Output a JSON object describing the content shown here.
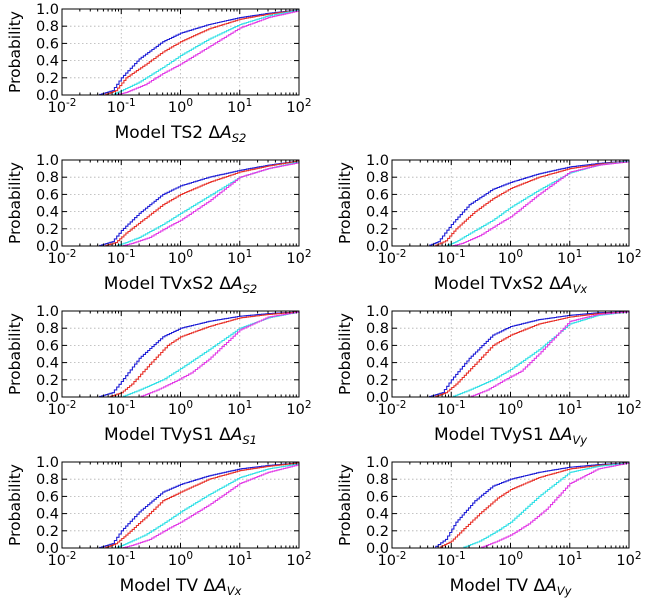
{
  "colors": {
    "blue": "#1f1fd6",
    "red": "#e8322a",
    "cyan": "#31e0e6",
    "magenta": "#e23ae6"
  },
  "chart_data": [
    {
      "type": "line",
      "ylabel": "Probability",
      "xlabel": {
        "model": "Model TS2",
        "delta": "Δ",
        "var": "A",
        "sub": "S2"
      },
      "xscale": "log",
      "xlim": [
        0.01,
        100
      ],
      "ylim": [
        0,
        1
      ],
      "grid": true,
      "xticks": [
        {
          "base": "10",
          "exp": "-2"
        },
        {
          "base": "10",
          "exp": "-1"
        },
        {
          "base": "10",
          "exp": "0"
        },
        {
          "base": "10",
          "exp": "1"
        },
        {
          "base": "10",
          "exp": "2"
        }
      ],
      "yticks": [
        "0.0",
        "0.2",
        "0.4",
        "0.6",
        "0.8",
        "1.0"
      ],
      "series": [
        {
          "color": "blue",
          "x": [
            0.04,
            0.07,
            0.1,
            0.2,
            0.5,
            1,
            3,
            10,
            30,
            100
          ],
          "y": [
            0,
            0.05,
            0.2,
            0.42,
            0.62,
            0.72,
            0.82,
            0.9,
            0.95,
            0.99
          ]
        },
        {
          "color": "red",
          "x": [
            0.05,
            0.08,
            0.12,
            0.25,
            0.5,
            1,
            3,
            10,
            30,
            100
          ],
          "y": [
            0,
            0.05,
            0.2,
            0.35,
            0.5,
            0.62,
            0.77,
            0.88,
            0.94,
            0.99
          ]
        },
        {
          "color": "cyan",
          "x": [
            0.07,
            0.1,
            0.2,
            0.5,
            1,
            3,
            10,
            30,
            100
          ],
          "y": [
            0,
            0.05,
            0.15,
            0.32,
            0.46,
            0.65,
            0.82,
            0.92,
            0.99
          ]
        },
        {
          "color": "magenta",
          "x": [
            0.08,
            0.12,
            0.25,
            0.5,
            1,
            3,
            10,
            30,
            100
          ],
          "y": [
            0,
            0.03,
            0.12,
            0.25,
            0.36,
            0.56,
            0.78,
            0.9,
            0.98
          ]
        }
      ]
    },
    {
      "type": "line",
      "ylabel": "Probability",
      "xlabel": {
        "model": "Model TVxS2",
        "delta": "Δ",
        "var": "A",
        "sub": "S2"
      },
      "xscale": "log",
      "xlim": [
        0.01,
        100
      ],
      "ylim": [
        0,
        1
      ],
      "grid": true,
      "xticks": [
        {
          "base": "10",
          "exp": "-2"
        },
        {
          "base": "10",
          "exp": "-1"
        },
        {
          "base": "10",
          "exp": "0"
        },
        {
          "base": "10",
          "exp": "1"
        },
        {
          "base": "10",
          "exp": "2"
        }
      ],
      "yticks": [
        "0.0",
        "0.2",
        "0.4",
        "0.6",
        "0.8",
        "1.0"
      ],
      "series": [
        {
          "color": "blue",
          "x": [
            0.04,
            0.07,
            0.1,
            0.2,
            0.5,
            1,
            3,
            10,
            30,
            100
          ],
          "y": [
            0,
            0.05,
            0.18,
            0.38,
            0.6,
            0.7,
            0.8,
            0.88,
            0.94,
            0.99
          ]
        },
        {
          "color": "red",
          "x": [
            0.05,
            0.08,
            0.12,
            0.25,
            0.5,
            1,
            3,
            10,
            30,
            100
          ],
          "y": [
            0,
            0.04,
            0.15,
            0.32,
            0.48,
            0.6,
            0.74,
            0.86,
            0.93,
            0.99
          ]
        },
        {
          "color": "cyan",
          "x": [
            0.08,
            0.12,
            0.2,
            0.5,
            1,
            3,
            10,
            30,
            100
          ],
          "y": [
            0,
            0.04,
            0.1,
            0.25,
            0.38,
            0.58,
            0.8,
            0.9,
            0.98
          ]
        },
        {
          "color": "magenta",
          "x": [
            0.1,
            0.15,
            0.3,
            0.6,
            1,
            3,
            10,
            30,
            100
          ],
          "y": [
            0,
            0.03,
            0.1,
            0.22,
            0.3,
            0.52,
            0.8,
            0.9,
            0.97
          ]
        }
      ]
    },
    {
      "type": "line",
      "ylabel": "Probability",
      "xlabel": {
        "model": "Model TVxS2",
        "delta": "Δ",
        "var": "A",
        "sub": "Vx"
      },
      "xscale": "log",
      "xlim": [
        0.01,
        100
      ],
      "ylim": [
        0,
        1
      ],
      "grid": true,
      "xticks": [
        {
          "base": "10",
          "exp": "-2"
        },
        {
          "base": "10",
          "exp": "-1"
        },
        {
          "base": "10",
          "exp": "0"
        },
        {
          "base": "10",
          "exp": "1"
        },
        {
          "base": "10",
          "exp": "2"
        }
      ],
      "yticks": [
        "0.0",
        "0.2",
        "0.4",
        "0.6",
        "0.8",
        "1.0"
      ],
      "series": [
        {
          "color": "blue",
          "x": [
            0.04,
            0.06,
            0.1,
            0.2,
            0.5,
            1,
            3,
            10,
            30,
            100
          ],
          "y": [
            0,
            0.05,
            0.25,
            0.48,
            0.66,
            0.74,
            0.84,
            0.92,
            0.96,
            0.99
          ]
        },
        {
          "color": "red",
          "x": [
            0.05,
            0.08,
            0.12,
            0.25,
            0.5,
            1,
            3,
            10,
            30,
            100
          ],
          "y": [
            0,
            0.06,
            0.2,
            0.4,
            0.55,
            0.67,
            0.8,
            0.9,
            0.95,
            0.99
          ]
        },
        {
          "color": "cyan",
          "x": [
            0.08,
            0.12,
            0.25,
            0.5,
            1,
            3,
            10,
            30,
            100
          ],
          "y": [
            0,
            0.05,
            0.18,
            0.3,
            0.45,
            0.65,
            0.85,
            0.94,
            0.99
          ]
        },
        {
          "color": "magenta",
          "x": [
            0.1,
            0.15,
            0.3,
            0.6,
            1,
            3,
            10,
            30,
            100
          ],
          "y": [
            0,
            0.03,
            0.12,
            0.25,
            0.34,
            0.6,
            0.86,
            0.94,
            0.98
          ]
        }
      ]
    },
    {
      "type": "line",
      "ylabel": "Probability",
      "xlabel": {
        "model": "Model TVyS1",
        "delta": "Δ",
        "var": "A",
        "sub": "S1"
      },
      "xscale": "log",
      "xlim": [
        0.01,
        100
      ],
      "ylim": [
        0,
        1
      ],
      "grid": true,
      "xticks": [
        {
          "base": "10",
          "exp": "-2"
        },
        {
          "base": "10",
          "exp": "-1"
        },
        {
          "base": "10",
          "exp": "0"
        },
        {
          "base": "10",
          "exp": "1"
        },
        {
          "base": "10",
          "exp": "2"
        }
      ],
      "yticks": [
        "0.0",
        "0.2",
        "0.4",
        "0.6",
        "0.8",
        "1.0"
      ],
      "series": [
        {
          "color": "blue",
          "x": [
            0.04,
            0.07,
            0.1,
            0.2,
            0.5,
            1,
            3,
            10,
            30,
            100
          ],
          "y": [
            0,
            0.05,
            0.18,
            0.45,
            0.7,
            0.8,
            0.88,
            0.94,
            0.97,
            0.99
          ]
        },
        {
          "color": "red",
          "x": [
            0.06,
            0.1,
            0.15,
            0.3,
            0.6,
            1,
            3,
            10,
            30,
            100
          ],
          "y": [
            0,
            0.05,
            0.15,
            0.38,
            0.6,
            0.7,
            0.82,
            0.92,
            0.96,
            0.99
          ]
        },
        {
          "color": "cyan",
          "x": [
            0.1,
            0.2,
            0.5,
            1,
            3,
            10,
            30,
            100
          ],
          "y": [
            0,
            0.08,
            0.2,
            0.33,
            0.55,
            0.8,
            0.92,
            0.99
          ]
        },
        {
          "color": "magenta",
          "x": [
            0.2,
            0.4,
            0.8,
            1.5,
            3,
            10,
            30,
            100
          ],
          "y": [
            0,
            0.08,
            0.18,
            0.28,
            0.44,
            0.78,
            0.93,
            0.99
          ]
        }
      ]
    },
    {
      "type": "line",
      "ylabel": "Probability",
      "xlabel": {
        "model": "Model TVyS1",
        "delta": "Δ",
        "var": "A",
        "sub": "Vy"
      },
      "xscale": "log",
      "xlim": [
        0.01,
        100
      ],
      "ylim": [
        0,
        1
      ],
      "grid": true,
      "xticks": [
        {
          "base": "10",
          "exp": "-2"
        },
        {
          "base": "10",
          "exp": "-1"
        },
        {
          "base": "10",
          "exp": "0"
        },
        {
          "base": "10",
          "exp": "1"
        },
        {
          "base": "10",
          "exp": "2"
        }
      ],
      "yticks": [
        "0.0",
        "0.2",
        "0.4",
        "0.6",
        "0.8",
        "1.0"
      ],
      "series": [
        {
          "color": "blue",
          "x": [
            0.04,
            0.07,
            0.1,
            0.2,
            0.5,
            1,
            3,
            10,
            30,
            100
          ],
          "y": [
            0,
            0.05,
            0.2,
            0.45,
            0.72,
            0.82,
            0.9,
            0.95,
            0.98,
            0.99
          ]
        },
        {
          "color": "red",
          "x": [
            0.05,
            0.08,
            0.12,
            0.25,
            0.5,
            1,
            3,
            10,
            30,
            100
          ],
          "y": [
            0,
            0.05,
            0.15,
            0.38,
            0.6,
            0.72,
            0.85,
            0.93,
            0.97,
            0.99
          ]
        },
        {
          "color": "cyan",
          "x": [
            0.1,
            0.2,
            0.5,
            1,
            3,
            10,
            30,
            100
          ],
          "y": [
            0,
            0.08,
            0.2,
            0.32,
            0.55,
            0.85,
            0.95,
            0.99
          ]
        },
        {
          "color": "magenta",
          "x": [
            0.2,
            0.4,
            0.8,
            1.5,
            3,
            10,
            30,
            100
          ],
          "y": [
            0,
            0.08,
            0.2,
            0.3,
            0.5,
            0.88,
            0.96,
            0.99
          ]
        }
      ]
    },
    {
      "type": "line",
      "ylabel": "Probability",
      "xlabel": {
        "model": "Model TV",
        "delta": "Δ",
        "var": "A",
        "sub": "Vx"
      },
      "xscale": "log",
      "xlim": [
        0.01,
        100
      ],
      "ylim": [
        0,
        1
      ],
      "grid": true,
      "xticks": [
        {
          "base": "10",
          "exp": "-2"
        },
        {
          "base": "10",
          "exp": "-1"
        },
        {
          "base": "10",
          "exp": "0"
        },
        {
          "base": "10",
          "exp": "1"
        },
        {
          "base": "10",
          "exp": "2"
        }
      ],
      "yticks": [
        "0.0",
        "0.2",
        "0.4",
        "0.6",
        "0.8",
        "1.0"
      ],
      "series": [
        {
          "color": "blue",
          "x": [
            0.04,
            0.07,
            0.1,
            0.2,
            0.5,
            1,
            3,
            10,
            30,
            100
          ],
          "y": [
            0,
            0.05,
            0.2,
            0.42,
            0.65,
            0.74,
            0.84,
            0.92,
            0.96,
            0.99
          ]
        },
        {
          "color": "red",
          "x": [
            0.05,
            0.08,
            0.12,
            0.25,
            0.5,
            1,
            3,
            10,
            30,
            100
          ],
          "y": [
            0,
            0.05,
            0.15,
            0.35,
            0.55,
            0.65,
            0.8,
            0.9,
            0.95,
            0.99
          ]
        },
        {
          "color": "cyan",
          "x": [
            0.08,
            0.12,
            0.25,
            0.5,
            1,
            3,
            10,
            30,
            100
          ],
          "y": [
            0,
            0.05,
            0.15,
            0.28,
            0.42,
            0.62,
            0.82,
            0.92,
            0.98
          ]
        },
        {
          "color": "magenta",
          "x": [
            0.1,
            0.15,
            0.3,
            0.6,
            1,
            3,
            10,
            30,
            100
          ],
          "y": [
            0,
            0.03,
            0.1,
            0.22,
            0.3,
            0.5,
            0.75,
            0.88,
            0.97
          ]
        }
      ]
    },
    {
      "type": "line",
      "ylabel": "Probability",
      "xlabel": {
        "model": "Model TV",
        "delta": "Δ",
        "var": "A",
        "sub": "Vy"
      },
      "xscale": "log",
      "xlim": [
        0.01,
        100
      ],
      "ylim": [
        0,
        1
      ],
      "grid": true,
      "xticks": [
        {
          "base": "10",
          "exp": "-2"
        },
        {
          "base": "10",
          "exp": "-1"
        },
        {
          "base": "10",
          "exp": "0"
        },
        {
          "base": "10",
          "exp": "1"
        },
        {
          "base": "10",
          "exp": "2"
        }
      ],
      "yticks": [
        "0.0",
        "0.2",
        "0.4",
        "0.6",
        "0.8",
        "1.0"
      ],
      "series": [
        {
          "color": "blue",
          "x": [
            0.05,
            0.08,
            0.12,
            0.25,
            0.5,
            1,
            3,
            10,
            30,
            100
          ],
          "y": [
            0,
            0.1,
            0.3,
            0.55,
            0.72,
            0.8,
            0.88,
            0.94,
            0.97,
            0.99
          ]
        },
        {
          "color": "red",
          "x": [
            0.06,
            0.1,
            0.15,
            0.3,
            0.6,
            1,
            3,
            10,
            30,
            100
          ],
          "y": [
            0,
            0.08,
            0.2,
            0.4,
            0.58,
            0.68,
            0.82,
            0.92,
            0.96,
            0.99
          ]
        },
        {
          "color": "cyan",
          "x": [
            0.15,
            0.3,
            0.6,
            1,
            3,
            10,
            30,
            100
          ],
          "y": [
            0,
            0.08,
            0.2,
            0.3,
            0.6,
            0.88,
            0.95,
            0.99
          ]
        },
        {
          "color": "magenta",
          "x": [
            0.3,
            0.6,
            1,
            2,
            4,
            10,
            30,
            100
          ],
          "y": [
            0,
            0.08,
            0.15,
            0.28,
            0.45,
            0.75,
            0.92,
            0.99
          ]
        }
      ]
    }
  ]
}
